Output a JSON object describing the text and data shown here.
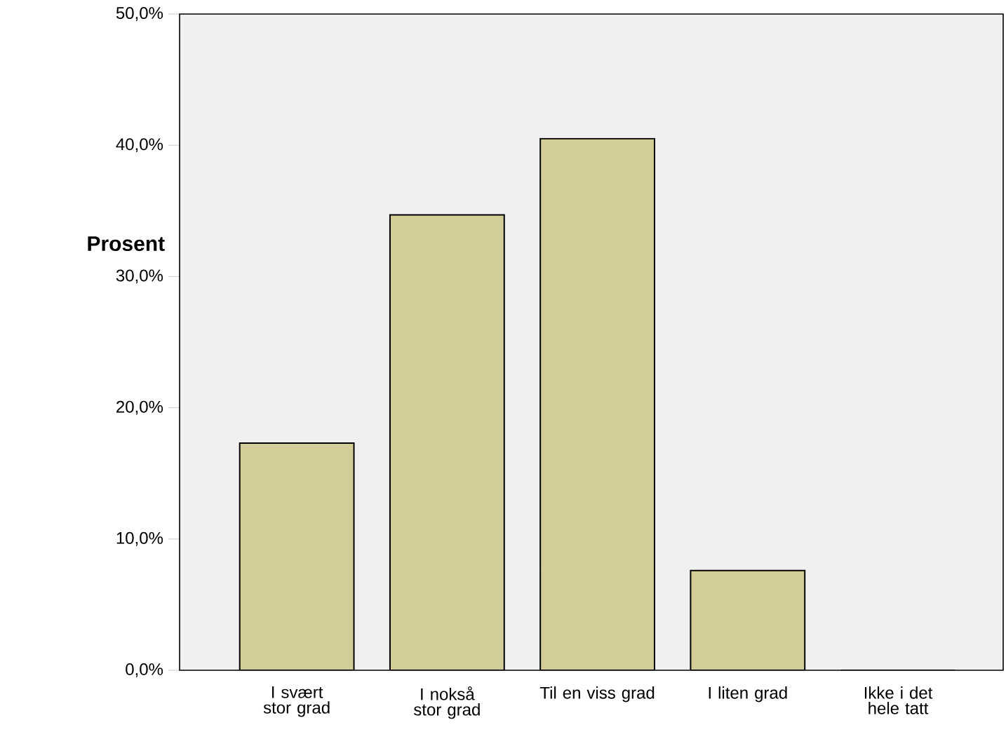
{
  "chart_data": {
    "type": "bar",
    "ylabel": "Prosent",
    "categories": [
      "I svært stor grad",
      "I nokså stor grad",
      "Til en viss grad",
      "I liten grad",
      "Ikke i det hele tatt"
    ],
    "values": [
      17.3,
      34.7,
      40.5,
      7.6,
      0
    ],
    "color": "#d3ce97",
    "ylim": [
      0,
      50
    ],
    "yticks": [
      {
        "value": 0,
        "label": "0,0%"
      },
      {
        "value": 10,
        "label": "10,0%"
      },
      {
        "value": 20,
        "label": "20,0%"
      },
      {
        "value": 30,
        "label": "30,0%"
      },
      {
        "value": 40,
        "label": "40,0%"
      },
      {
        "value": 50,
        "label": "50,0%"
      }
    ],
    "grid": false
  }
}
